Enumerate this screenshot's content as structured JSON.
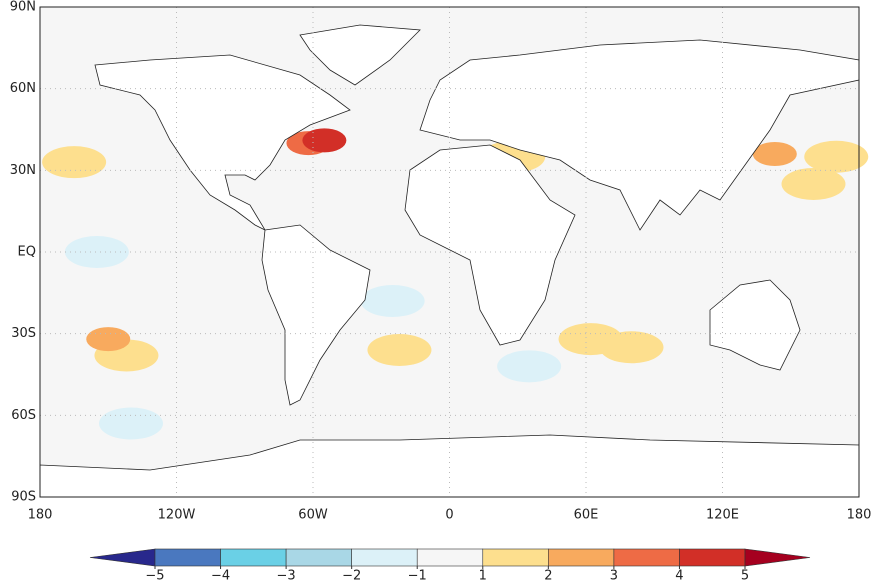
{
  "chart_data": {
    "type": "map",
    "xlim": [
      -180,
      180
    ],
    "ylim": [
      -90,
      90
    ],
    "xticks": [
      {
        "value": -180,
        "label": "180"
      },
      {
        "value": -120,
        "label": "120W"
      },
      {
        "value": -60,
        "label": "60W"
      },
      0,
      {
        "value": 60,
        "label": "60E"
      },
      {
        "value": 120,
        "label": "120E"
      },
      {
        "value": 180,
        "label": "180"
      }
    ],
    "yticks": [
      {
        "value": 90,
        "label": "90N"
      },
      {
        "value": 60,
        "label": "60N"
      },
      {
        "value": 30,
        "label": "30N"
      },
      {
        "value": 0,
        "label": "EQ"
      },
      {
        "value": -30,
        "label": "30S"
      },
      {
        "value": -60,
        "label": "60S"
      },
      {
        "value": -90,
        "label": "90S"
      }
    ],
    "grid": true,
    "colorbar": {
      "ticks": [
        {
          "value": -5,
          "label": "−5"
        },
        {
          "value": -4,
          "label": "−4"
        },
        {
          "value": -3,
          "label": "−3"
        },
        {
          "value": -2,
          "label": "−2"
        },
        {
          "value": -1,
          "label": "−1"
        },
        1,
        2,
        3,
        4,
        5
      ],
      "colors": [
        "#28288c",
        "#4a78bf",
        "#6ad0e6",
        "#a9d7e6",
        "#dcf1f8",
        "#f6f6f6",
        "#fddf8e",
        "#f8aa5e",
        "#ee6b45",
        "#d22f27",
        "#a5001f"
      ]
    },
    "anomalies": [
      {
        "lon": -155,
        "lat": 0,
        "value": -1.2
      },
      {
        "lon": -140,
        "lat": -63,
        "value": -1.3
      },
      {
        "lon": -25,
        "lat": -18,
        "value": -1.2
      },
      {
        "lon": 35,
        "lat": -42,
        "value": -1.2
      },
      {
        "lon": -165,
        "lat": 33,
        "value": 1.5
      },
      {
        "lon": -142,
        "lat": -38,
        "value": 1.6
      },
      {
        "lon": -150,
        "lat": -32,
        "value": 2.6
      },
      {
        "lon": -22,
        "lat": -36,
        "value": 1.6
      },
      {
        "lon": 62,
        "lat": -32,
        "value": 1.5
      },
      {
        "lon": 80,
        "lat": -35,
        "value": 1.4
      },
      {
        "lon": 160,
        "lat": 25,
        "value": 1.5
      },
      {
        "lon": 170,
        "lat": 35,
        "value": 1.4
      },
      {
        "lon": 143,
        "lat": 36,
        "value": 2.6
      },
      {
        "lon": 28,
        "lat": 35,
        "value": 1.5
      },
      {
        "lon": -62,
        "lat": 40,
        "value": 3.2
      },
      {
        "lon": -55,
        "lat": 41,
        "value": 4.2
      }
    ]
  }
}
